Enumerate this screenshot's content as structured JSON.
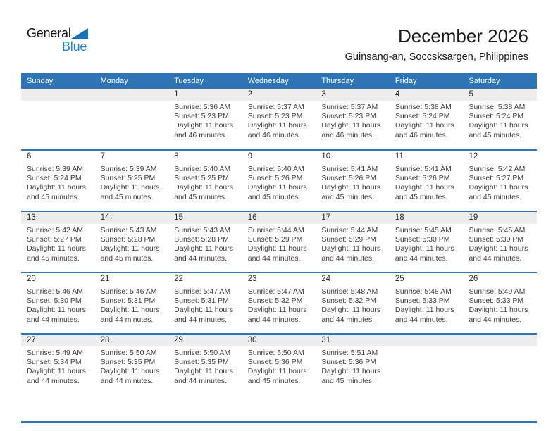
{
  "logo": {
    "word1": "General",
    "word2": "Blue"
  },
  "header": {
    "title": "December 2026",
    "subtitle": "Guinsang-an, Soccsksargen, Philippines"
  },
  "colors": {
    "accent_blue": "#2E75B6",
    "band_gray": "#EDEDED",
    "logo_blue": "#1E87D0",
    "logo_triangle_blue": "#1471BA"
  },
  "calendar": {
    "weekday_headers": [
      "Sunday",
      "Monday",
      "Tuesday",
      "Wednesday",
      "Thursday",
      "Friday",
      "Saturday"
    ],
    "labels": {
      "sunrise": "Sunrise:",
      "sunset": "Sunset:",
      "daylight_prefix": "Daylight: 11 hours",
      "daylight_suffix_template": "and {m} minutes."
    },
    "weeks": [
      {
        "shaded": true,
        "days": [
          null,
          null,
          {
            "num": 1,
            "sunrise": "5:36 AM",
            "sunset": "5:23 PM",
            "daylight_hours": 11,
            "daylight_minutes": 46
          },
          {
            "num": 2,
            "sunrise": "5:37 AM",
            "sunset": "5:23 PM",
            "daylight_hours": 11,
            "daylight_minutes": 46
          },
          {
            "num": 3,
            "sunrise": "5:37 AM",
            "sunset": "5:23 PM",
            "daylight_hours": 11,
            "daylight_minutes": 46
          },
          {
            "num": 4,
            "sunrise": "5:38 AM",
            "sunset": "5:24 PM",
            "daylight_hours": 11,
            "daylight_minutes": 46
          },
          {
            "num": 5,
            "sunrise": "5:38 AM",
            "sunset": "5:24 PM",
            "daylight_hours": 11,
            "daylight_minutes": 45
          }
        ]
      },
      {
        "shaded": false,
        "days": [
          {
            "num": 6,
            "sunrise": "5:39 AM",
            "sunset": "5:24 PM",
            "daylight_hours": 11,
            "daylight_minutes": 45
          },
          {
            "num": 7,
            "sunrise": "5:39 AM",
            "sunset": "5:25 PM",
            "daylight_hours": 11,
            "daylight_minutes": 45
          },
          {
            "num": 8,
            "sunrise": "5:40 AM",
            "sunset": "5:25 PM",
            "daylight_hours": 11,
            "daylight_minutes": 45
          },
          {
            "num": 9,
            "sunrise": "5:40 AM",
            "sunset": "5:26 PM",
            "daylight_hours": 11,
            "daylight_minutes": 45
          },
          {
            "num": 10,
            "sunrise": "5:41 AM",
            "sunset": "5:26 PM",
            "daylight_hours": 11,
            "daylight_minutes": 45
          },
          {
            "num": 11,
            "sunrise": "5:41 AM",
            "sunset": "5:26 PM",
            "daylight_hours": 11,
            "daylight_minutes": 45
          },
          {
            "num": 12,
            "sunrise": "5:42 AM",
            "sunset": "5:27 PM",
            "daylight_hours": 11,
            "daylight_minutes": 45
          }
        ]
      },
      {
        "shaded": true,
        "days": [
          {
            "num": 13,
            "sunrise": "5:42 AM",
            "sunset": "5:27 PM",
            "daylight_hours": 11,
            "daylight_minutes": 45
          },
          {
            "num": 14,
            "sunrise": "5:43 AM",
            "sunset": "5:28 PM",
            "daylight_hours": 11,
            "daylight_minutes": 45
          },
          {
            "num": 15,
            "sunrise": "5:43 AM",
            "sunset": "5:28 PM",
            "daylight_hours": 11,
            "daylight_minutes": 44
          },
          {
            "num": 16,
            "sunrise": "5:44 AM",
            "sunset": "5:29 PM",
            "daylight_hours": 11,
            "daylight_minutes": 44
          },
          {
            "num": 17,
            "sunrise": "5:44 AM",
            "sunset": "5:29 PM",
            "daylight_hours": 11,
            "daylight_minutes": 44
          },
          {
            "num": 18,
            "sunrise": "5:45 AM",
            "sunset": "5:30 PM",
            "daylight_hours": 11,
            "daylight_minutes": 44
          },
          {
            "num": 19,
            "sunrise": "5:45 AM",
            "sunset": "5:30 PM",
            "daylight_hours": 11,
            "daylight_minutes": 44
          }
        ]
      },
      {
        "shaded": false,
        "days": [
          {
            "num": 20,
            "sunrise": "5:46 AM",
            "sunset": "5:30 PM",
            "daylight_hours": 11,
            "daylight_minutes": 44
          },
          {
            "num": 21,
            "sunrise": "5:46 AM",
            "sunset": "5:31 PM",
            "daylight_hours": 11,
            "daylight_minutes": 44
          },
          {
            "num": 22,
            "sunrise": "5:47 AM",
            "sunset": "5:31 PM",
            "daylight_hours": 11,
            "daylight_minutes": 44
          },
          {
            "num": 23,
            "sunrise": "5:47 AM",
            "sunset": "5:32 PM",
            "daylight_hours": 11,
            "daylight_minutes": 44
          },
          {
            "num": 24,
            "sunrise": "5:48 AM",
            "sunset": "5:32 PM",
            "daylight_hours": 11,
            "daylight_minutes": 44
          },
          {
            "num": 25,
            "sunrise": "5:48 AM",
            "sunset": "5:33 PM",
            "daylight_hours": 11,
            "daylight_minutes": 44
          },
          {
            "num": 26,
            "sunrise": "5:49 AM",
            "sunset": "5:33 PM",
            "daylight_hours": 11,
            "daylight_minutes": 44
          }
        ]
      },
      {
        "shaded": true,
        "days": [
          {
            "num": 27,
            "sunrise": "5:49 AM",
            "sunset": "5:34 PM",
            "daylight_hours": 11,
            "daylight_minutes": 44
          },
          {
            "num": 28,
            "sunrise": "5:50 AM",
            "sunset": "5:35 PM",
            "daylight_hours": 11,
            "daylight_minutes": 44
          },
          {
            "num": 29,
            "sunrise": "5:50 AM",
            "sunset": "5:35 PM",
            "daylight_hours": 11,
            "daylight_minutes": 44
          },
          {
            "num": 30,
            "sunrise": "5:50 AM",
            "sunset": "5:36 PM",
            "daylight_hours": 11,
            "daylight_minutes": 45
          },
          {
            "num": 31,
            "sunrise": "5:51 AM",
            "sunset": "5:36 PM",
            "daylight_hours": 11,
            "daylight_minutes": 45
          },
          null,
          null
        ]
      }
    ]
  }
}
